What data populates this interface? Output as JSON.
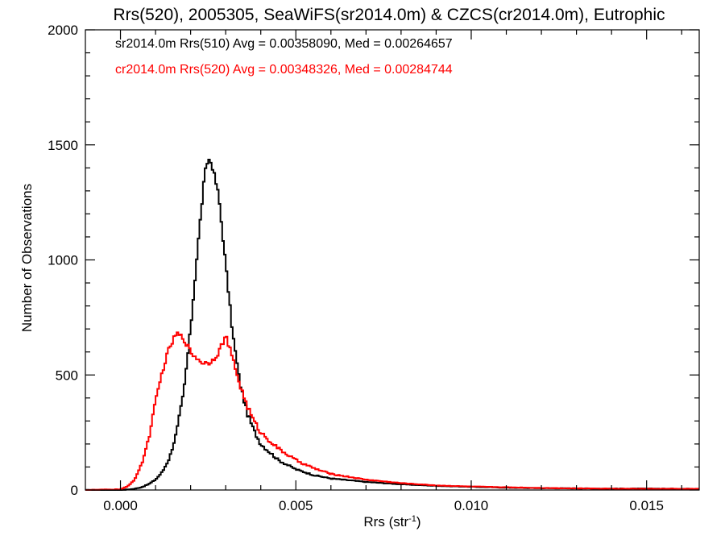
{
  "chart_data": {
    "type": "line",
    "title": "Rrs(520), 2005305, SeaWiFS(sr2014.0m) & CZCS(cr2014.0m), Eutrophic",
    "xlabel": "Rrs (str",
    "xlabel_sup": "-1",
    "xlabel_close": ")",
    "ylabel": "Number of Observations",
    "xlim": [
      -0.001,
      0.0165
    ],
    "ylim": [
      0,
      2000
    ],
    "x_ticks": [
      0.0,
      0.005,
      0.01,
      0.015
    ],
    "x_tick_labels": [
      "0.000",
      "0.005",
      "0.010",
      "0.015"
    ],
    "y_ticks": [
      0,
      500,
      1000,
      1500,
      2000
    ],
    "y_tick_labels": [
      "0",
      "500",
      "1000",
      "1500",
      "2000"
    ],
    "grid": false,
    "legend_placement": "top-left",
    "series": [
      {
        "name": "sr2014.0m Rrs(510) Avg = 0.00358090, Med = 0.00264657",
        "color": "#000000",
        "points": [
          [
            -0.001,
            0
          ],
          [
            0.0,
            0
          ],
          [
            0.0002,
            2
          ],
          [
            0.0004,
            5
          ],
          [
            0.0006,
            12
          ],
          [
            0.0008,
            25
          ],
          [
            0.001,
            45
          ],
          [
            0.0012,
            80
          ],
          [
            0.0014,
            140
          ],
          [
            0.0016,
            250
          ],
          [
            0.0018,
            420
          ],
          [
            0.002,
            700
          ],
          [
            0.0022,
            1050
          ],
          [
            0.0024,
            1370
          ],
          [
            0.0025,
            1440
          ],
          [
            0.0026,
            1420
          ],
          [
            0.0028,
            1280
          ],
          [
            0.003,
            980
          ],
          [
            0.0032,
            680
          ],
          [
            0.0034,
            470
          ],
          [
            0.0036,
            340
          ],
          [
            0.0038,
            260
          ],
          [
            0.004,
            200
          ],
          [
            0.0045,
            130
          ],
          [
            0.005,
            90
          ],
          [
            0.0055,
            65
          ],
          [
            0.006,
            50
          ],
          [
            0.007,
            35
          ],
          [
            0.008,
            25
          ],
          [
            0.009,
            18
          ],
          [
            0.01,
            14
          ],
          [
            0.011,
            10
          ],
          [
            0.012,
            8
          ],
          [
            0.013,
            7
          ],
          [
            0.014,
            6
          ],
          [
            0.015,
            6
          ],
          [
            0.0165,
            5
          ]
        ]
      },
      {
        "name": "cr2014.0m Rrs(520) Avg = 0.00348326, Med = 0.00284744",
        "color": "#ff0000",
        "points": [
          [
            -0.001,
            0
          ],
          [
            0.0,
            3
          ],
          [
            0.0002,
            15
          ],
          [
            0.0004,
            45
          ],
          [
            0.0006,
            110
          ],
          [
            0.0008,
            220
          ],
          [
            0.001,
            380
          ],
          [
            0.0012,
            520
          ],
          [
            0.0014,
            620
          ],
          [
            0.0016,
            680
          ],
          [
            0.0018,
            660
          ],
          [
            0.002,
            600
          ],
          [
            0.0022,
            570
          ],
          [
            0.0024,
            550
          ],
          [
            0.0026,
            560
          ],
          [
            0.0028,
            600
          ],
          [
            0.003,
            670
          ],
          [
            0.0032,
            570
          ],
          [
            0.0034,
            460
          ],
          [
            0.0036,
            370
          ],
          [
            0.0038,
            300
          ],
          [
            0.004,
            250
          ],
          [
            0.0045,
            180
          ],
          [
            0.005,
            130
          ],
          [
            0.0055,
            95
          ],
          [
            0.006,
            70
          ],
          [
            0.007,
            45
          ],
          [
            0.008,
            30
          ],
          [
            0.009,
            20
          ],
          [
            0.01,
            15
          ],
          [
            0.011,
            12
          ],
          [
            0.012,
            9
          ],
          [
            0.013,
            7
          ],
          [
            0.014,
            6
          ],
          [
            0.015,
            5
          ],
          [
            0.0165,
            5
          ]
        ]
      }
    ]
  }
}
